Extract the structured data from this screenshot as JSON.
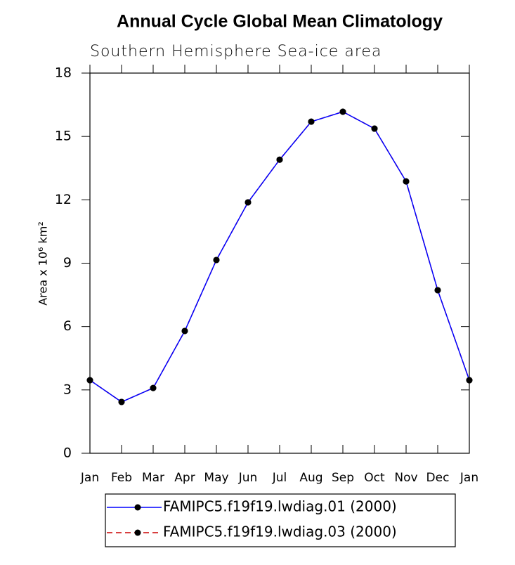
{
  "chart_data": {
    "type": "line",
    "title": "Annual Cycle Global Mean Climatology",
    "subtitle": "Southern Hemisphere Sea-ice area",
    "y_label": "Area x 10⁶ km²",
    "categories": [
      "Jan",
      "Feb",
      "Mar",
      "Apr",
      "May",
      "Jun",
      "Jul",
      "Aug",
      "Sep",
      "Oct",
      "Nov",
      "Dec",
      "Jan"
    ],
    "series": [
      {
        "name": "FAMIPC5.f19f19.lwdiag.01 (2000)",
        "color": "#0000ff",
        "dash": false,
        "values": [
          3.46,
          2.43,
          3.09,
          5.79,
          9.15,
          11.88,
          13.9,
          15.7,
          16.17,
          15.37,
          12.87,
          7.72,
          3.46
        ]
      },
      {
        "name": "FAMIPC5.f19f19.lwdiag.03 (2000)",
        "color": "#cc0000",
        "dash": true,
        "values": [
          3.46,
          2.43,
          3.09,
          5.79,
          9.15,
          11.88,
          13.9,
          15.7,
          16.17,
          15.37,
          12.87,
          7.72,
          3.46
        ]
      }
    ],
    "ylim": [
      0,
      18
    ],
    "yticks": [
      0,
      3,
      6,
      9,
      12,
      15,
      18
    ]
  }
}
